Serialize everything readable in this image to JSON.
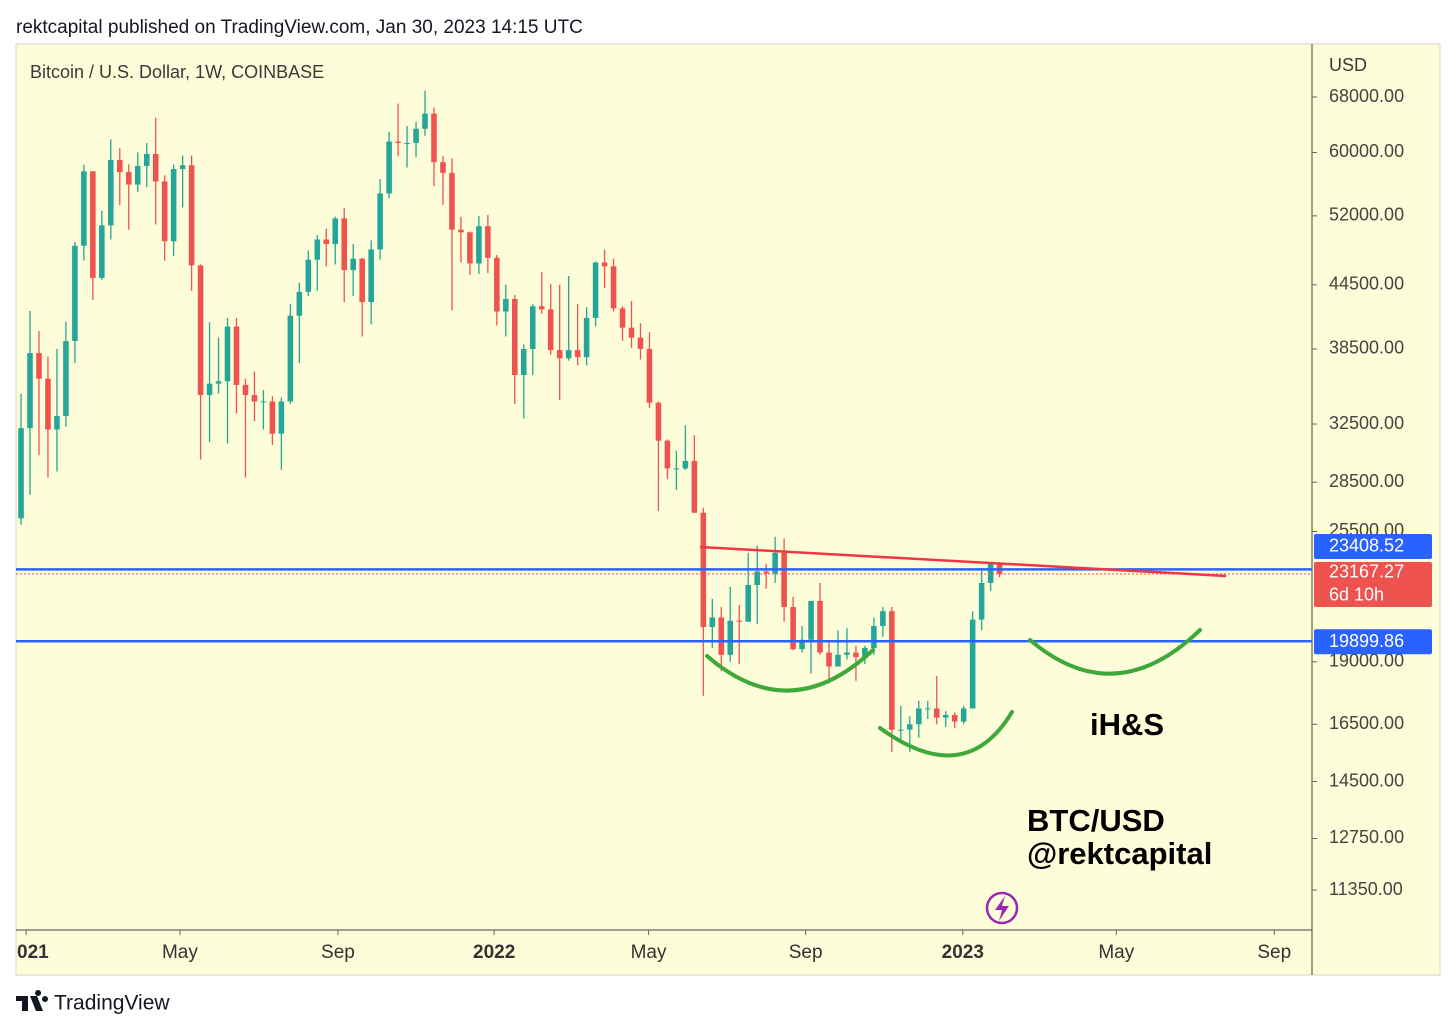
{
  "header": "rektcapital published on TradingView.com, Jan 30, 2023 14:15 UTC",
  "footer_brand": "TradingView",
  "chart_data": {
    "type": "candlestick",
    "title": "Bitcoin / U.S. Dollar, 1W, COINBASE",
    "y_axis_label": "USD",
    "log_scale": true,
    "up_color": "#26a69a",
    "down_color": "#ef5350",
    "level_color": "#2962ff",
    "categories": [
      null,
      null,
      null,
      null,
      null,
      null,
      null,
      null,
      null,
      null,
      null,
      null,
      null,
      null,
      null,
      null,
      null,
      null,
      null,
      null,
      null,
      null,
      null,
      null,
      null,
      null,
      null,
      null,
      null,
      null,
      null,
      null,
      null,
      null,
      null,
      null,
      null,
      null,
      null,
      null,
      null,
      null,
      null,
      null,
      null,
      null,
      null,
      null,
      null,
      null,
      null,
      null,
      null,
      null,
      null,
      null,
      null,
      null,
      null,
      null,
      null,
      null,
      null,
      null,
      null,
      null,
      null,
      null,
      null,
      null,
      null,
      null,
      null,
      null,
      null,
      null,
      null,
      null,
      null,
      null,
      null,
      null,
      null,
      null,
      null,
      null,
      null,
      null,
      null,
      null,
      null,
      null,
      null,
      null,
      null,
      null,
      null,
      null,
      null,
      null,
      null,
      null,
      null,
      null,
      null,
      null,
      null,
      null,
      null,
      null
    ],
    "open": [
      26270,
      32200,
      38150,
      36000,
      32100,
      33100,
      39200,
      48600,
      57500,
      45200,
      50900,
      59000,
      57400,
      55800,
      58200,
      59800,
      56200,
      49100,
      57800,
      58300,
      46500,
      34700,
      35600,
      35800,
      40500,
      35500,
      34700,
      34200,
      34200,
      31800,
      34200,
      41500,
      43800,
      47100,
      49300,
      48800,
      51700,
      46000,
      47200,
      42800,
      48200,
      54700,
      61500,
      61300,
      61300,
      63300,
      65500,
      58700,
      57300,
      50400,
      50100,
      46700,
      50800,
      47300,
      41900,
      43100,
      36300,
      38500,
      42400,
      42100,
      38400,
      37700,
      38400,
      37800,
      41300,
      46800,
      46400,
      42200,
      40400,
      39500,
      38500,
      34100,
      31300,
      29400,
      29400,
      29900,
      26600,
      20550,
      21000,
      19300,
      20850,
      20800,
      22600,
      23300,
      23200,
      24300,
      21500,
      19550,
      19970,
      21800,
      19400,
      18800,
      19300,
      19400,
      19200,
      19600,
      20600,
      21300,
      16300,
      16300,
      16500,
      17100,
      17100,
      16750,
      16850,
      16600,
      17100,
      20900,
      22700,
      23750
    ],
    "high": [
      34800,
      41950,
      40100,
      37850,
      38500,
      40950,
      49000,
      58350,
      57500,
      52600,
      61800,
      60600,
      58400,
      60000,
      61300,
      64900,
      57000,
      58400,
      59600,
      59600,
      46600,
      40900,
      39500,
      41300,
      41300,
      36000,
      36600,
      35100,
      34600,
      34500,
      42600,
      44700,
      48100,
      49800,
      50500,
      51900,
      52900,
      48800,
      47300,
      49200,
      56500,
      62900,
      67000,
      63700,
      64300,
      69000,
      66400,
      59500,
      59200,
      51900,
      50200,
      52000,
      52100,
      47600,
      44500,
      43500,
      38900,
      42600,
      45800,
      44600,
      44500,
      45400,
      42600,
      42300,
      46900,
      48200,
      47200,
      42400,
      42900,
      40800,
      40000,
      34200,
      31400,
      30600,
      32400,
      31700,
      26900,
      21900,
      21500,
      22500,
      21600,
      24300,
      24700,
      23700,
      25200,
      25100,
      22000,
      20600,
      21800,
      22700,
      19900,
      20400,
      20500,
      19700,
      19700,
      21000,
      21500,
      21500,
      17200,
      16800,
      17400,
      17400,
      18400,
      17000,
      16950,
      17200,
      21300,
      23400,
      23800,
      23800
    ],
    "low": [
      25900,
      27700,
      30300,
      28800,
      29200,
      32300,
      37300,
      47000,
      43000,
      45000,
      49300,
      53300,
      50400,
      54900,
      55500,
      51000,
      47000,
      47500,
      53000,
      43900,
      30000,
      31200,
      34800,
      31100,
      33300,
      28800,
      32700,
      32100,
      31000,
      29300,
      34000,
      37300,
      43400,
      43900,
      46400,
      46600,
      42800,
      43400,
      39600,
      40700,
      47100,
      54100,
      59500,
      58000,
      59400,
      62300,
      55600,
      53300,
      42000,
      46800,
      45500,
      45600,
      45700,
      40600,
      39600,
      34000,
      32900,
      36300,
      41700,
      38000,
      34300,
      37500,
      37100,
      37100,
      40500,
      44200,
      41900,
      39200,
      38600,
      37600,
      33700,
      26700,
      28700,
      28000,
      29300,
      26600,
      17600,
      19600,
      18600,
      19000,
      18900,
      20800,
      20700,
      22400,
      22700,
      20800,
      19500,
      19400,
      18500,
      19300,
      18100,
      18800,
      19100,
      18200,
      18900,
      19300,
      20100,
      15500,
      15800,
      15500,
      16000,
      16700,
      16500,
      16400,
      16350,
      16500,
      17100,
      20400,
      22300,
      23000
    ],
    "close": [
      32200,
      38150,
      36000,
      32100,
      33100,
      39200,
      48600,
      57500,
      45200,
      50900,
      59000,
      57400,
      55800,
      58200,
      59800,
      56200,
      49100,
      57800,
      58300,
      46500,
      34700,
      35600,
      35800,
      40500,
      35500,
      34700,
      34200,
      34200,
      31800,
      34200,
      41500,
      43800,
      47100,
      49300,
      48800,
      51700,
      46000,
      47200,
      42800,
      48200,
      54700,
      61500,
      61300,
      61300,
      63300,
      65500,
      58700,
      57300,
      50400,
      50100,
      46700,
      50800,
      47300,
      41900,
      43100,
      36300,
      38500,
      42400,
      42100,
      38400,
      37700,
      38400,
      37800,
      41300,
      46800,
      46400,
      42200,
      40400,
      39500,
      38500,
      34100,
      31300,
      29400,
      29400,
      29900,
      26600,
      20550,
      21000,
      19300,
      20850,
      20800,
      22600,
      23300,
      23200,
      24300,
      21500,
      19550,
      19970,
      21800,
      19400,
      18800,
      19300,
      19400,
      19200,
      19600,
      20600,
      21300,
      16300,
      16300,
      16500,
      17100,
      17100,
      16750,
      16850,
      16600,
      17100,
      20900,
      22700,
      23750,
      23167.27
    ],
    "countdown": "6d 10h",
    "levels": [
      23408.52,
      19899.86
    ],
    "xlim": [
      -0.56,
      143.8
    ],
    "xticks": [
      {
        "value": 0.57,
        "label": "021"
      },
      {
        "value": 17.7,
        "label": "May"
      },
      {
        "value": 35.3,
        "label": "Sep"
      },
      {
        "value": 52.7,
        "label": "2022"
      },
      {
        "value": 69.9,
        "label": "May"
      },
      {
        "value": 87.4,
        "label": "Sep"
      },
      {
        "value": 104.9,
        "label": "2023"
      },
      {
        "value": 122,
        "label": "May"
      },
      {
        "value": 139.6,
        "label": "Sep"
      }
    ],
    "ylim": [
      10370,
      76650
    ],
    "yticks": [
      {
        "value": 68000,
        "label": "68000.00"
      },
      {
        "value": 60000,
        "label": "60000.00"
      },
      {
        "value": 52000,
        "label": "52000.00"
      },
      {
        "value": 44500,
        "label": "44500.00"
      },
      {
        "value": 38500,
        "label": "38500.00"
      },
      {
        "value": 32500,
        "label": "32500.00"
      },
      {
        "value": 28500,
        "label": "28500.00"
      },
      {
        "value": 25500,
        "label": "25500.00"
      },
      {
        "value": 19000,
        "label": "19000.00"
      },
      {
        "value": 16500,
        "label": "16500.00"
      },
      {
        "value": 14500,
        "label": "14500.00"
      },
      {
        "value": 12750,
        "label": "12750.00"
      },
      {
        "value": 11350,
        "label": "11350.00"
      }
    ],
    "annotations": [
      "iH&S",
      "BTC/USD",
      "@rektcapital"
    ]
  }
}
